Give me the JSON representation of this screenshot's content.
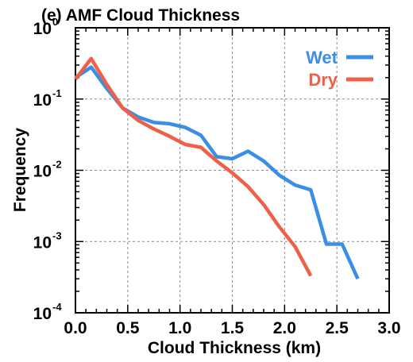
{
  "chart_data": {
    "type": "line",
    "title": "(e) AMF Cloud Thickness",
    "xlabel": "Cloud Thickness (km)",
    "ylabel": "Frequency",
    "xlim": [
      0.0,
      3.0
    ],
    "ylim": [
      0.0001,
      1
    ],
    "yscale": "log",
    "grid": true,
    "legend_position": "top-right",
    "x_ticks": [
      {
        "value": 0.0,
        "label": "0.0"
      },
      {
        "value": 0.5,
        "label": "0.5"
      },
      {
        "value": 1.0,
        "label": "1.0"
      },
      {
        "value": 1.5,
        "label": "1.5"
      },
      {
        "value": 2.0,
        "label": "2.0"
      },
      {
        "value": 2.5,
        "label": "2.5"
      },
      {
        "value": 3.0,
        "label": "3.0"
      }
    ],
    "y_ticks": [
      {
        "value": 1,
        "base": "10",
        "exp": "0"
      },
      {
        "value": 0.1,
        "base": "10",
        "exp": "-1"
      },
      {
        "value": 0.01,
        "base": "10",
        "exp": "-2"
      },
      {
        "value": 0.001,
        "base": "10",
        "exp": "-3"
      },
      {
        "value": 0.0001,
        "base": "10",
        "exp": "-4"
      }
    ],
    "series": [
      {
        "name": "Wet",
        "color": "#3a8ee6",
        "points": [
          [
            0.0,
            0.2
          ],
          [
            0.15,
            0.28
          ],
          [
            0.3,
            0.14
          ],
          [
            0.45,
            0.075
          ],
          [
            0.6,
            0.056
          ],
          [
            0.75,
            0.047
          ],
          [
            0.9,
            0.045
          ],
          [
            1.05,
            0.04
          ],
          [
            1.2,
            0.031
          ],
          [
            1.35,
            0.0155
          ],
          [
            1.5,
            0.0145
          ],
          [
            1.65,
            0.0185
          ],
          [
            1.8,
            0.0135
          ],
          [
            1.95,
            0.0085
          ],
          [
            2.1,
            0.0062
          ],
          [
            2.25,
            0.0053
          ],
          [
            2.4,
            0.00092
          ],
          [
            2.55,
            0.00092
          ],
          [
            2.7,
            0.0003
          ]
        ]
      },
      {
        "name": "Dry",
        "color": "#f06048",
        "points": [
          [
            0.0,
            0.19
          ],
          [
            0.15,
            0.37
          ],
          [
            0.3,
            0.16
          ],
          [
            0.45,
            0.075
          ],
          [
            0.6,
            0.05
          ],
          [
            0.75,
            0.038
          ],
          [
            0.9,
            0.03
          ],
          [
            1.05,
            0.023
          ],
          [
            1.2,
            0.021
          ],
          [
            1.35,
            0.0135
          ],
          [
            1.5,
            0.0092
          ],
          [
            1.65,
            0.0059
          ],
          [
            1.8,
            0.0033
          ],
          [
            1.95,
            0.0016
          ],
          [
            2.1,
            0.00085
          ],
          [
            2.25,
            0.00033
          ]
        ]
      }
    ]
  }
}
